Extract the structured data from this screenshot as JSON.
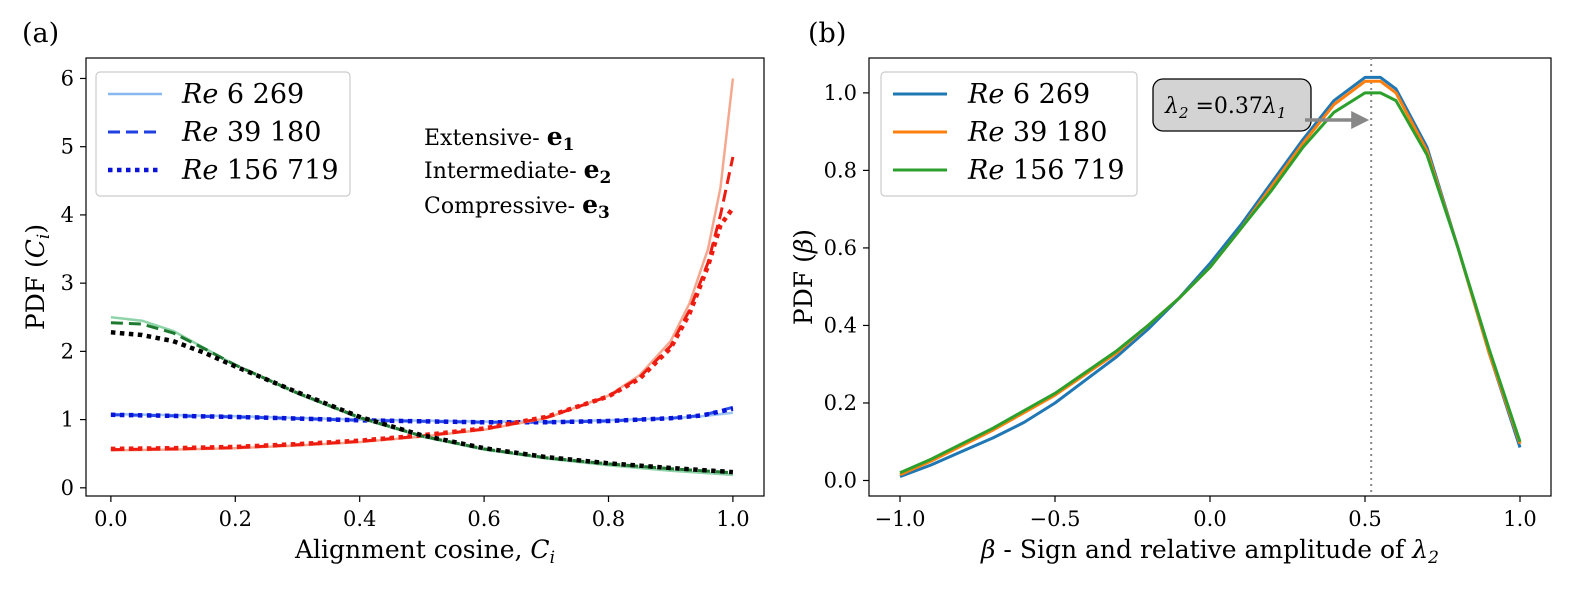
{
  "chart_data": [
    {
      "panel_label": "(a)",
      "type": "line",
      "xlabel": "Alignment cosine, ",
      "xlabel_var": "C",
      "xlabel_sub": "i",
      "ylabel": "PDF (",
      "ylabel_var": "C",
      "ylabel_sub": "i",
      "ylabel_end": ")",
      "xlim": [
        -0.04,
        1.05
      ],
      "ylim": [
        -0.12,
        6.3
      ],
      "xticks": [
        "0.0",
        "0.2",
        "0.4",
        "0.6",
        "0.8",
        "1.0"
      ],
      "yticks": [
        "0",
        "1",
        "2",
        "3",
        "4",
        "5",
        "6"
      ],
      "legend": [
        {
          "prefix": "Re",
          "label": " 6 269",
          "style": "solid",
          "color": "#87b8f0"
        },
        {
          "prefix": "Re",
          "label": " 39 180",
          "style": "dashed",
          "color": "#1f3fe0"
        },
        {
          "prefix": "Re",
          "label": " 156 719",
          "style": "dotted",
          "color": "#0a14d8"
        }
      ],
      "annotations": [
        {
          "text": "Extensive- ",
          "vec": "e",
          "sub": "1",
          "color": "#3d8ee0"
        },
        {
          "text": "Intermediate- ",
          "vec": "e",
          "sub": "2",
          "color": "#f08560"
        },
        {
          "text": "Compressive- ",
          "vec": "e",
          "sub": "3",
          "color": "#3cb878"
        }
      ],
      "series": [
        {
          "name": "Extensive e1, Re 6 269",
          "color": "#9dc4f2",
          "style": "solid",
          "x": [
            0,
            0.2,
            0.4,
            0.6,
            0.7,
            0.8,
            0.9,
            0.95,
            1.0
          ],
          "y": [
            1.08,
            1.05,
            1.0,
            0.97,
            0.97,
            0.99,
            1.02,
            1.05,
            1.1
          ]
        },
        {
          "name": "Extensive e1, Re 39 180",
          "color": "#2a4fe8",
          "style": "dashed",
          "x": [
            0,
            0.2,
            0.4,
            0.6,
            0.7,
            0.8,
            0.9,
            0.95,
            1.0
          ],
          "y": [
            1.07,
            1.04,
            0.99,
            0.96,
            0.96,
            0.98,
            1.02,
            1.06,
            1.18
          ]
        },
        {
          "name": "Extensive e1, Re 156 719",
          "color": "#0a14d8",
          "style": "dotted",
          "x": [
            0,
            0.2,
            0.4,
            0.6,
            0.7,
            0.8,
            0.9,
            0.95,
            1.0
          ],
          "y": [
            1.07,
            1.04,
            0.99,
            0.96,
            0.96,
            0.98,
            1.02,
            1.06,
            1.16
          ]
        },
        {
          "name": "Intermediate e2, Re 6 269",
          "color": "#f5a890",
          "style": "solid",
          "x": [
            0,
            0.1,
            0.2,
            0.3,
            0.4,
            0.5,
            0.6,
            0.7,
            0.8,
            0.85,
            0.9,
            0.93,
            0.96,
            0.98,
            1.0
          ],
          "y": [
            0.55,
            0.56,
            0.58,
            0.62,
            0.67,
            0.75,
            0.85,
            1.02,
            1.35,
            1.65,
            2.15,
            2.7,
            3.5,
            4.4,
            6.0
          ]
        },
        {
          "name": "Intermediate e2, Re 39 180",
          "color": "#ee1c10",
          "style": "dashed",
          "x": [
            0,
            0.1,
            0.2,
            0.3,
            0.4,
            0.5,
            0.6,
            0.7,
            0.8,
            0.85,
            0.9,
            0.93,
            0.96,
            0.98,
            1.0
          ],
          "y": [
            0.56,
            0.57,
            0.59,
            0.63,
            0.68,
            0.76,
            0.86,
            1.03,
            1.34,
            1.62,
            2.08,
            2.6,
            3.3,
            4.0,
            4.85
          ]
        },
        {
          "name": "Intermediate e2, Re 156 719",
          "color": "#ee1c10",
          "style": "dotted",
          "x": [
            0,
            0.1,
            0.2,
            0.3,
            0.4,
            0.5,
            0.6,
            0.7,
            0.8,
            0.85,
            0.9,
            0.93,
            0.96,
            0.98,
            1.0
          ],
          "y": [
            0.57,
            0.58,
            0.6,
            0.64,
            0.69,
            0.77,
            0.87,
            1.04,
            1.34,
            1.6,
            2.05,
            2.55,
            3.25,
            3.85,
            4.1
          ]
        },
        {
          "name": "Compressive e3, Re 6 269",
          "color": "#8fd4a8",
          "style": "solid",
          "x": [
            0,
            0.05,
            0.1,
            0.15,
            0.2,
            0.3,
            0.4,
            0.5,
            0.6,
            0.7,
            0.8,
            0.9,
            1.0
          ],
          "y": [
            2.5,
            2.45,
            2.3,
            2.05,
            1.8,
            1.38,
            1.02,
            0.75,
            0.56,
            0.43,
            0.33,
            0.25,
            0.19
          ]
        },
        {
          "name": "Compressive e3, Re 39 180",
          "color": "#1e7a30",
          "style": "dashed",
          "x": [
            0,
            0.05,
            0.1,
            0.15,
            0.2,
            0.3,
            0.4,
            0.5,
            0.6,
            0.7,
            0.8,
            0.9,
            1.0
          ],
          "y": [
            2.42,
            2.4,
            2.27,
            2.04,
            1.8,
            1.39,
            1.03,
            0.76,
            0.57,
            0.44,
            0.35,
            0.28,
            0.22
          ]
        },
        {
          "name": "Compressive e3, Re 156 719",
          "color": "#000000",
          "style": "dotted",
          "x": [
            0,
            0.05,
            0.1,
            0.15,
            0.2,
            0.3,
            0.4,
            0.5,
            0.6,
            0.7,
            0.8,
            0.9,
            1.0
          ],
          "y": [
            2.28,
            2.24,
            2.15,
            1.98,
            1.78,
            1.4,
            1.04,
            0.77,
            0.58,
            0.45,
            0.36,
            0.29,
            0.23
          ]
        }
      ]
    },
    {
      "panel_label": "(b)",
      "type": "line",
      "xlabel_var": "β",
      "xlabel": " - Sign and relative amplitude of ",
      "xlabel_var2": "λ",
      "xlabel_sub": "2",
      "ylabel": "PDF (",
      "ylabel_var": "β",
      "ylabel_end": ")",
      "xlim": [
        -1.1,
        1.1
      ],
      "ylim": [
        -0.04,
        1.09
      ],
      "xticks": [
        "−1.0",
        "−0.5",
        "0.0",
        "0.5",
        "1.0"
      ],
      "yticks": [
        "0.0",
        "0.2",
        "0.4",
        "0.6",
        "0.8",
        "1.0"
      ],
      "vline_x": 0.52,
      "legend": [
        {
          "prefix": "Re",
          "label": " 6 269",
          "style": "solid",
          "color": "#1f77b4"
        },
        {
          "prefix": "Re",
          "label": " 39 180",
          "style": "solid",
          "color": "#ff7f0e"
        },
        {
          "prefix": "Re",
          "label": " 156 719",
          "style": "solid",
          "color": "#2ca02c"
        }
      ],
      "annotation": {
        "var1": "λ",
        "sub1": "2",
        "mid": " =0.37",
        "var2": "λ",
        "sub2": "1",
        "arrow_to_x": 0.52,
        "arrow_to_y": 0.93
      },
      "series": [
        {
          "name": "Re 6 269",
          "color": "#1f77b4",
          "x": [
            -1.0,
            -0.9,
            -0.8,
            -0.7,
            -0.6,
            -0.5,
            -0.4,
            -0.3,
            -0.2,
            -0.1,
            0.0,
            0.1,
            0.2,
            0.3,
            0.4,
            0.5,
            0.55,
            0.6,
            0.7,
            0.8,
            0.9,
            1.0
          ],
          "y": [
            0.01,
            0.04,
            0.075,
            0.11,
            0.15,
            0.2,
            0.26,
            0.32,
            0.39,
            0.47,
            0.56,
            0.66,
            0.77,
            0.88,
            0.98,
            1.04,
            1.04,
            1.01,
            0.86,
            0.6,
            0.33,
            0.085
          ]
        },
        {
          "name": "Re 39 180",
          "color": "#ff7f0e",
          "x": [
            -1.0,
            -0.9,
            -0.8,
            -0.7,
            -0.6,
            -0.5,
            -0.4,
            -0.3,
            -0.2,
            -0.1,
            0.0,
            0.1,
            0.2,
            0.3,
            0.4,
            0.5,
            0.55,
            0.6,
            0.7,
            0.8,
            0.9,
            1.0
          ],
          "y": [
            0.015,
            0.05,
            0.09,
            0.13,
            0.175,
            0.22,
            0.275,
            0.33,
            0.4,
            0.47,
            0.55,
            0.65,
            0.76,
            0.87,
            0.97,
            1.03,
            1.03,
            1.0,
            0.85,
            0.6,
            0.33,
            0.095
          ]
        },
        {
          "name": "Re 156 719",
          "color": "#2ca02c",
          "x": [
            -1.0,
            -0.9,
            -0.8,
            -0.7,
            -0.6,
            -0.5,
            -0.4,
            -0.3,
            -0.2,
            -0.1,
            0.0,
            0.1,
            0.2,
            0.3,
            0.4,
            0.5,
            0.55,
            0.6,
            0.7,
            0.8,
            0.9,
            1.0
          ],
          "y": [
            0.02,
            0.055,
            0.095,
            0.135,
            0.18,
            0.225,
            0.28,
            0.335,
            0.4,
            0.47,
            0.55,
            0.65,
            0.75,
            0.86,
            0.95,
            1.0,
            1.0,
            0.98,
            0.84,
            0.6,
            0.34,
            0.1
          ]
        }
      ]
    }
  ]
}
